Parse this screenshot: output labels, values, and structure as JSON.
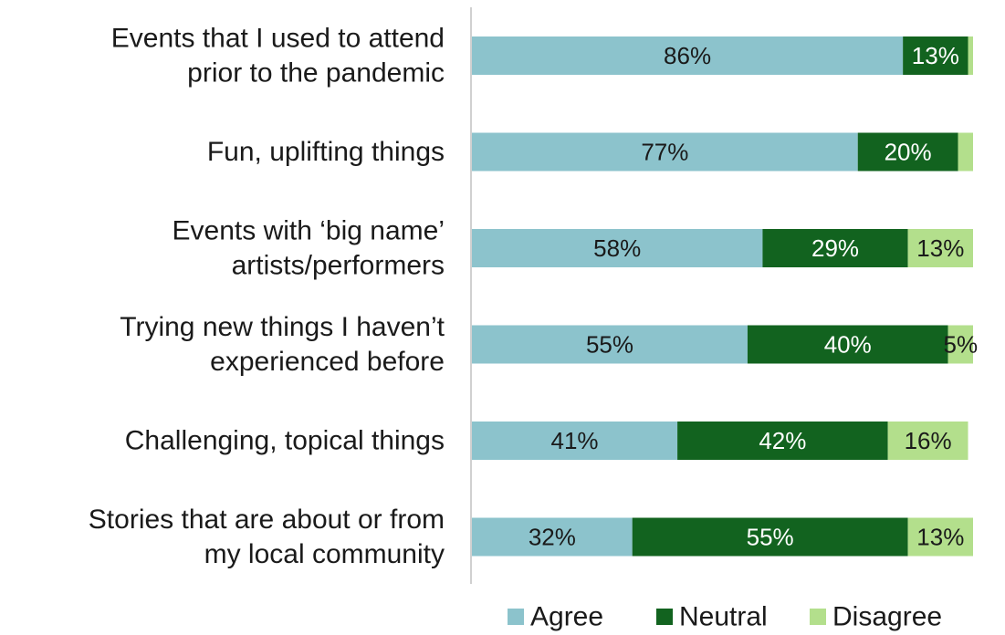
{
  "chart_data": {
    "type": "bar",
    "orientation": "horizontal",
    "stacked": true,
    "categories": [
      [
        "Events that I used to attend",
        "prior to the pandemic"
      ],
      [
        "Fun, uplifting things"
      ],
      [
        "Events with ‘big name’",
        "artists/performers"
      ],
      [
        "Trying new things I haven’t",
        "experienced before"
      ],
      [
        "Challenging, topical things"
      ],
      [
        "Stories that are about or from",
        "my local community"
      ]
    ],
    "series": [
      {
        "name": "Agree",
        "color": "#8cc3cc",
        "values": [
          86,
          77,
          58,
          55,
          41,
          32
        ],
        "labels": [
          "86%",
          "77%",
          "58%",
          "55%",
          "41%",
          "32%"
        ]
      },
      {
        "name": "Neutral",
        "color": "#12631f",
        "values": [
          13,
          20,
          29,
          40,
          42,
          55
        ],
        "labels": [
          "13%",
          "20%",
          "29%",
          "40%",
          "42%",
          "55%"
        ]
      },
      {
        "name": "Disagree",
        "color": "#b3df8c",
        "values": [
          1,
          3,
          13,
          5,
          16,
          13
        ],
        "labels": [
          "",
          "",
          "13%",
          "5%",
          "16%",
          "13%"
        ]
      }
    ],
    "xlim": [
      0,
      100
    ],
    "legend": "bottom-right",
    "grid": false
  }
}
